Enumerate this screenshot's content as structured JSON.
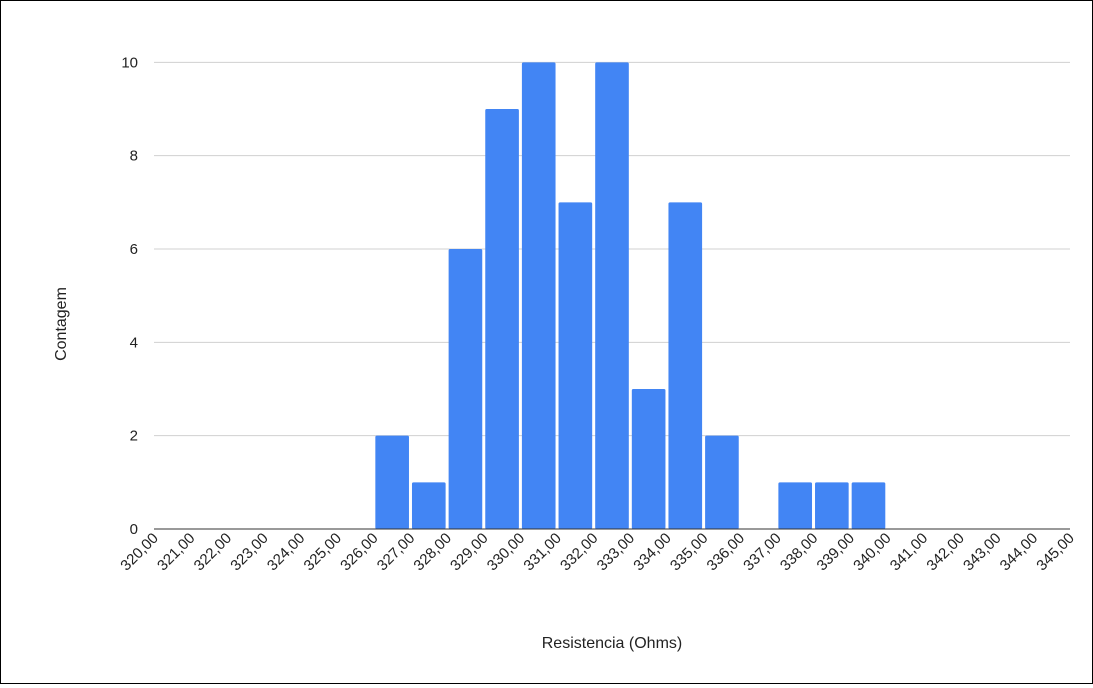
{
  "chart_data": {
    "type": "bar",
    "title": "",
    "xlabel": "Resistencia (Ohms)",
    "ylabel": "Contagem",
    "x_tick_labels": [
      "320,00",
      "321,00",
      "322,00",
      "323,00",
      "324,00",
      "325,00",
      "326,00",
      "327,00",
      "328,00",
      "329,00",
      "330,00",
      "331,00",
      "332,00",
      "333,00",
      "334,00",
      "335,00",
      "336,00",
      "337,00",
      "338,00",
      "339,00",
      "340,00",
      "341,00",
      "342,00",
      "343,00",
      "344,00",
      "345,00"
    ],
    "y_ticks": [
      0,
      2,
      4,
      6,
      8,
      10
    ],
    "ylim": [
      0,
      10.5
    ],
    "xlim": [
      320,
      345
    ],
    "bins": [
      {
        "from": 320,
        "to": 321,
        "value": 0
      },
      {
        "from": 321,
        "to": 322,
        "value": 0
      },
      {
        "from": 322,
        "to": 323,
        "value": 0
      },
      {
        "from": 323,
        "to": 324,
        "value": 0
      },
      {
        "from": 324,
        "to": 325,
        "value": 0
      },
      {
        "from": 325,
        "to": 326,
        "value": 0
      },
      {
        "from": 326,
        "to": 327,
        "value": 2
      },
      {
        "from": 327,
        "to": 328,
        "value": 1
      },
      {
        "from": 328,
        "to": 329,
        "value": 6
      },
      {
        "from": 329,
        "to": 330,
        "value": 9
      },
      {
        "from": 330,
        "to": 331,
        "value": 10
      },
      {
        "from": 331,
        "to": 332,
        "value": 7
      },
      {
        "from": 332,
        "to": 333,
        "value": 10
      },
      {
        "from": 333,
        "to": 334,
        "value": 3
      },
      {
        "from": 334,
        "to": 335,
        "value": 7
      },
      {
        "from": 335,
        "to": 336,
        "value": 2
      },
      {
        "from": 336,
        "to": 337,
        "value": 0
      },
      {
        "from": 337,
        "to": 338,
        "value": 1
      },
      {
        "from": 338,
        "to": 339,
        "value": 1
      },
      {
        "from": 339,
        "to": 340,
        "value": 1
      },
      {
        "from": 340,
        "to": 341,
        "value": 0
      },
      {
        "from": 341,
        "to": 342,
        "value": 0
      },
      {
        "from": 342,
        "to": 343,
        "value": 0
      },
      {
        "from": 343,
        "to": 344,
        "value": 0
      },
      {
        "from": 344,
        "to": 345,
        "value": 0
      }
    ],
    "bar_color": "#4285f4",
    "grid": true,
    "legend": "none"
  }
}
